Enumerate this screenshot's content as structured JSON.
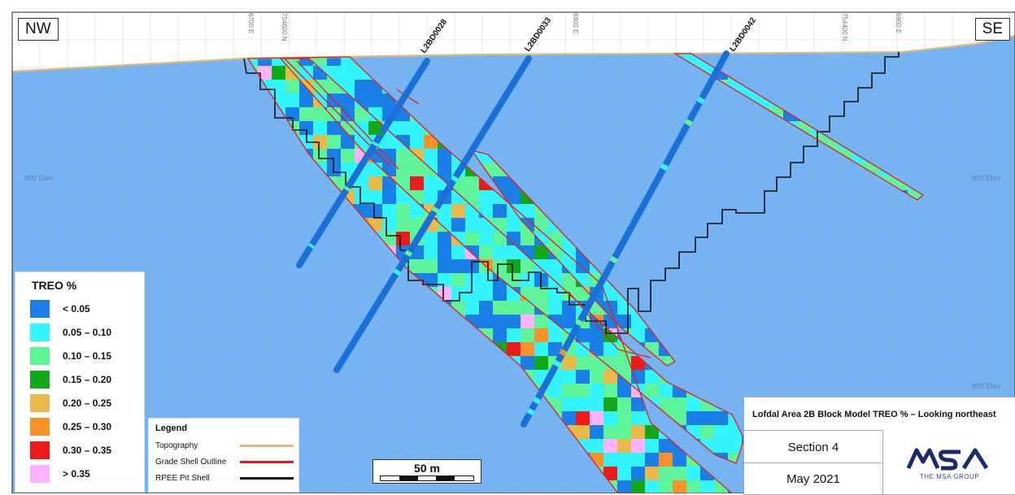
{
  "orientation": {
    "left": "NW",
    "right": "SE"
  },
  "drillholes": [
    {
      "id": "L2BD0028"
    },
    {
      "id": "L2BD0033"
    },
    {
      "id": "L2BD0042"
    }
  ],
  "grid_labels": {
    "elev_upper": "900 Elev",
    "elev_lower": "800 Elev",
    "top_ticks": [
      "6700 E",
      "754600 N",
      "6800 E",
      "754400 N",
      "6900 E"
    ]
  },
  "legend_treo": {
    "title": "TREO %",
    "items": [
      {
        "label": "< 0.05",
        "color": "#1a7fe6"
      },
      {
        "label": "0.05 – 0.10",
        "color": "#33f5ff"
      },
      {
        "label": "0.10 – 0.15",
        "color": "#5ef59a"
      },
      {
        "label": "0.15 – 0.20",
        "color": "#13a81a"
      },
      {
        "label": "0.20 – 0.25",
        "color": "#e8ba4a"
      },
      {
        "label": "0.25 – 0.30",
        "color": "#f7922a"
      },
      {
        "label": "0.30 – 0.35",
        "color": "#ee1a1a"
      },
      {
        "label": "> 0.35",
        "color": "#ffb3ff"
      }
    ]
  },
  "legend_lines": {
    "title": "Legend",
    "items": [
      {
        "label": "Topography",
        "color": "#e0b97a"
      },
      {
        "label": "Grade Shell Outline",
        "color": "#e41c1c"
      },
      {
        "label": "RPEE Pit Shell",
        "color": "#111111"
      }
    ]
  },
  "scale": {
    "label": "50 m"
  },
  "title_block": {
    "title": "Lofdal Area 2B Block Model TREO % – Looking northeast",
    "section": "Section 4",
    "date": "May 2021",
    "logo_text": "MSA",
    "logo_sub": "THE MSA GROUP"
  },
  "colors": {
    "background_block": "#75b3f2",
    "grid": "#8fb1d6",
    "grade_shell": "#e41c1c",
    "pit_shell": "#111111",
    "topography": "#e0b97a",
    "drillhole": "#1a6fd9"
  }
}
